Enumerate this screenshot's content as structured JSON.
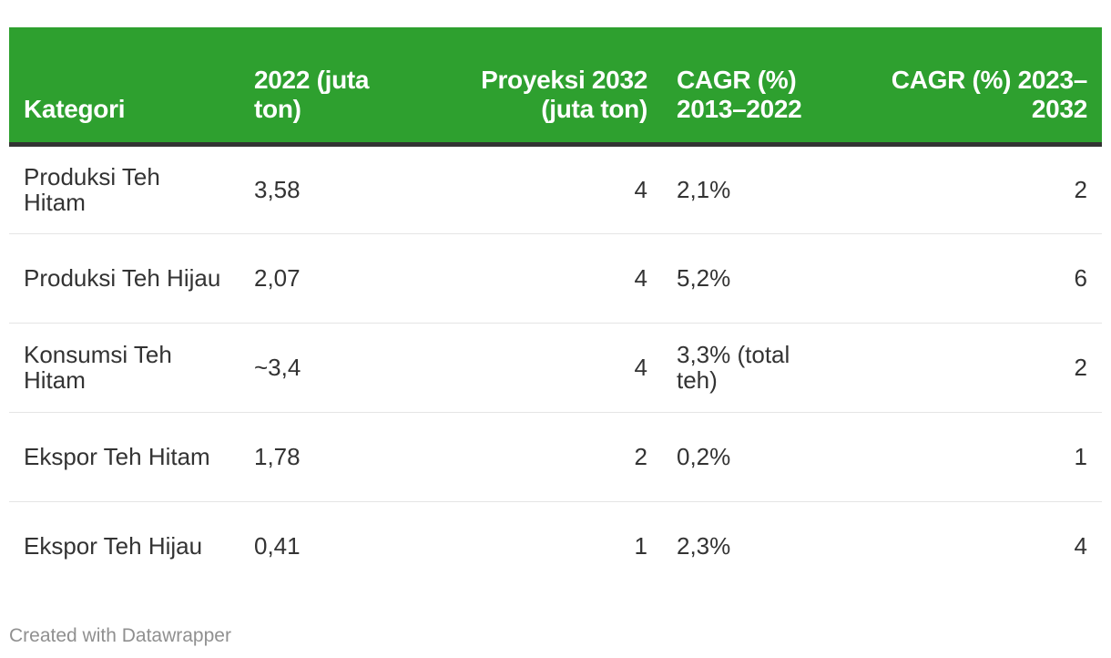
{
  "chart_data": {
    "type": "table",
    "columns": [
      {
        "label": "Kategori",
        "align": "left"
      },
      {
        "label": "2022 (juta ton)",
        "align": "left"
      },
      {
        "label": "Proyeksi 2032 (juta ton)",
        "align": "right"
      },
      {
        "label": "CAGR (%) 2013–2022",
        "align": "left"
      },
      {
        "label": "CAGR (%) 2023–2032",
        "align": "right"
      }
    ],
    "rows": [
      [
        "Produksi Teh Hitam",
        "3,58",
        "4",
        "2,1%",
        "2"
      ],
      [
        "Produksi Teh Hijau",
        "2,07",
        "4",
        "5,2%",
        "6"
      ],
      [
        "Konsumsi Teh Hitam",
        "~3,4",
        "4",
        "3,3% (total teh)",
        "2"
      ],
      [
        "Ekspor Teh Hitam",
        "1,78",
        "2",
        "0,2%",
        "1"
      ],
      [
        "Ekspor Teh Hijau",
        "0,41",
        "1",
        "2,3%",
        "4"
      ]
    ],
    "header_color": "#2ea02f"
  },
  "footer": {
    "credit": "Created with Datawrapper"
  }
}
